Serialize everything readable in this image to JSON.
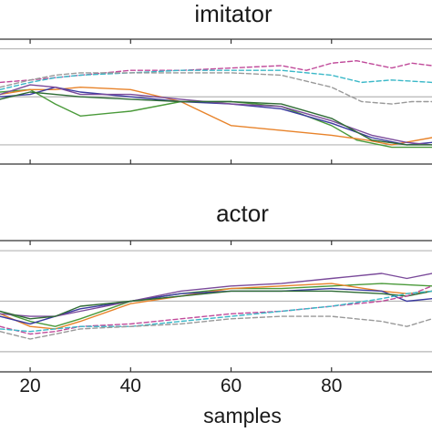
{
  "chart_data": [
    {
      "type": "line",
      "title": "imitator",
      "xlabel": "",
      "ylabel": "",
      "xlim": [
        14,
        100
      ],
      "ylim": [
        -1.4,
        1.2
      ],
      "x_ticks": [
        20,
        40,
        60,
        80
      ],
      "x_tick_labels": [],
      "y_gridlines": [
        -1,
        0,
        1
      ],
      "grid": "horizontal",
      "series": [
        {
          "style": "solid",
          "color": "#4a9a3a",
          "points": [
            [
              14,
              0.1
            ],
            [
              20,
              0.15
            ],
            [
              25,
              -0.15
            ],
            [
              30,
              -0.4
            ],
            [
              40,
              -0.3
            ],
            [
              50,
              -0.1
            ],
            [
              60,
              -0.1
            ],
            [
              70,
              -0.2
            ],
            [
              80,
              -0.6
            ],
            [
              85,
              -0.9
            ],
            [
              92,
              -1.05
            ],
            [
              100,
              -1.05
            ]
          ]
        },
        {
          "style": "solid",
          "color": "#e8832a",
          "points": [
            [
              14,
              0.05
            ],
            [
              20,
              0.15
            ],
            [
              25,
              0.15
            ],
            [
              30,
              0.2
            ],
            [
              40,
              0.15
            ],
            [
              50,
              -0.1
            ],
            [
              60,
              -0.6
            ],
            [
              70,
              -0.7
            ],
            [
              80,
              -0.8
            ],
            [
              87,
              -0.9
            ],
            [
              92,
              -1.0
            ],
            [
              100,
              -0.85
            ]
          ]
        },
        {
          "style": "solid",
          "color": "#3b3aa0",
          "points": [
            [
              14,
              0.0
            ],
            [
              20,
              0.05
            ],
            [
              25,
              0.2
            ],
            [
              30,
              0.1
            ],
            [
              40,
              0.0
            ],
            [
              50,
              -0.1
            ],
            [
              60,
              -0.15
            ],
            [
              70,
              -0.25
            ],
            [
              80,
              -0.55
            ],
            [
              88,
              -0.85
            ],
            [
              95,
              -1.0
            ],
            [
              100,
              -0.95
            ]
          ]
        },
        {
          "style": "solid",
          "color": "#7a4a9a",
          "points": [
            [
              14,
              0.05
            ],
            [
              20,
              0.25
            ],
            [
              25,
              0.2
            ],
            [
              30,
              0.05
            ],
            [
              40,
              0.05
            ],
            [
              50,
              -0.05
            ],
            [
              60,
              -0.15
            ],
            [
              70,
              -0.2
            ],
            [
              80,
              -0.5
            ],
            [
              88,
              -0.8
            ],
            [
              95,
              -0.95
            ],
            [
              100,
              -1.0
            ]
          ]
        },
        {
          "style": "solid",
          "color": "#2e6b34",
          "points": [
            [
              14,
              -0.05
            ],
            [
              20,
              0.1
            ],
            [
              25,
              0.05
            ],
            [
              30,
              0.0
            ],
            [
              40,
              -0.05
            ],
            [
              50,
              -0.1
            ],
            [
              60,
              -0.1
            ],
            [
              70,
              -0.15
            ],
            [
              80,
              -0.45
            ],
            [
              88,
              -0.9
            ],
            [
              95,
              -1.0
            ],
            [
              100,
              -1.0
            ]
          ]
        },
        {
          "style": "dashed",
          "color": "#c04a9a",
          "points": [
            [
              14,
              0.3
            ],
            [
              20,
              0.35
            ],
            [
              25,
              0.4
            ],
            [
              30,
              0.45
            ],
            [
              40,
              0.55
            ],
            [
              50,
              0.55
            ],
            [
              60,
              0.6
            ],
            [
              70,
              0.65
            ],
            [
              75,
              0.55
            ],
            [
              80,
              0.7
            ],
            [
              85,
              0.75
            ],
            [
              92,
              0.6
            ],
            [
              96,
              0.7
            ],
            [
              100,
              0.65
            ]
          ]
        },
        {
          "style": "dashed",
          "color": "#3ab8c8",
          "points": [
            [
              14,
              0.15
            ],
            [
              20,
              0.3
            ],
            [
              25,
              0.4
            ],
            [
              30,
              0.45
            ],
            [
              40,
              0.5
            ],
            [
              50,
              0.55
            ],
            [
              60,
              0.55
            ],
            [
              70,
              0.55
            ],
            [
              80,
              0.45
            ],
            [
              86,
              0.3
            ],
            [
              92,
              0.35
            ],
            [
              100,
              0.3
            ]
          ]
        },
        {
          "style": "dashed",
          "color": "#999999",
          "points": [
            [
              14,
              0.2
            ],
            [
              20,
              0.35
            ],
            [
              25,
              0.45
            ],
            [
              30,
              0.5
            ],
            [
              40,
              0.5
            ],
            [
              50,
              0.5
            ],
            [
              60,
              0.5
            ],
            [
              70,
              0.45
            ],
            [
              80,
              0.2
            ],
            [
              86,
              -0.1
            ],
            [
              92,
              -0.15
            ],
            [
              96,
              -0.1
            ],
            [
              100,
              -0.1
            ]
          ]
        }
      ]
    },
    {
      "type": "line",
      "title": "actor",
      "xlabel": "samples",
      "ylabel": "",
      "xlim": [
        14,
        100
      ],
      "ylim": [
        -1.4,
        1.2
      ],
      "x_ticks": [
        20,
        40,
        60,
        80
      ],
      "x_tick_labels": [
        "20",
        "40",
        "60",
        "80"
      ],
      "y_gridlines": [
        -1,
        0,
        1
      ],
      "grid": "horizontal",
      "series": [
        {
          "style": "solid",
          "color": "#4a9a3a",
          "points": [
            [
              14,
              -0.2
            ],
            [
              20,
              -0.4
            ],
            [
              25,
              -0.5
            ],
            [
              30,
              -0.35
            ],
            [
              40,
              0.0
            ],
            [
              50,
              0.15
            ],
            [
              60,
              0.25
            ],
            [
              70,
              0.25
            ],
            [
              80,
              0.3
            ],
            [
              90,
              0.35
            ],
            [
              100,
              0.3
            ]
          ]
        },
        {
          "style": "solid",
          "color": "#e8832a",
          "points": [
            [
              14,
              -0.25
            ],
            [
              20,
              -0.5
            ],
            [
              25,
              -0.55
            ],
            [
              30,
              -0.4
            ],
            [
              40,
              -0.05
            ],
            [
              50,
              0.1
            ],
            [
              60,
              0.25
            ],
            [
              70,
              0.3
            ],
            [
              80,
              0.35
            ],
            [
              90,
              0.2
            ],
            [
              95,
              0.15
            ],
            [
              100,
              0.2
            ]
          ]
        },
        {
          "style": "solid",
          "color": "#3b3aa0",
          "points": [
            [
              14,
              -0.3
            ],
            [
              20,
              -0.45
            ],
            [
              25,
              -0.3
            ],
            [
              30,
              -0.15
            ],
            [
              40,
              0.0
            ],
            [
              50,
              0.15
            ],
            [
              60,
              0.2
            ],
            [
              70,
              0.2
            ],
            [
              80,
              0.25
            ],
            [
              90,
              0.2
            ],
            [
              95,
              0.0
            ],
            [
              100,
              0.05
            ]
          ]
        },
        {
          "style": "solid",
          "color": "#7a4a9a",
          "points": [
            [
              14,
              -0.25
            ],
            [
              20,
              -0.3
            ],
            [
              25,
              -0.3
            ],
            [
              30,
              -0.2
            ],
            [
              40,
              0.0
            ],
            [
              50,
              0.2
            ],
            [
              60,
              0.3
            ],
            [
              70,
              0.35
            ],
            [
              80,
              0.45
            ],
            [
              90,
              0.55
            ],
            [
              95,
              0.45
            ],
            [
              100,
              0.55
            ]
          ]
        },
        {
          "style": "solid",
          "color": "#2e6b34",
          "points": [
            [
              14,
              -0.2
            ],
            [
              20,
              -0.35
            ],
            [
              25,
              -0.3
            ],
            [
              30,
              -0.1
            ],
            [
              40,
              0.0
            ],
            [
              50,
              0.1
            ],
            [
              60,
              0.2
            ],
            [
              70,
              0.2
            ],
            [
              80,
              0.2
            ],
            [
              90,
              0.15
            ],
            [
              95,
              0.1
            ],
            [
              100,
              0.2
            ]
          ]
        },
        {
          "style": "dashed",
          "color": "#c04a9a",
          "points": [
            [
              14,
              -0.5
            ],
            [
              20,
              -0.65
            ],
            [
              25,
              -0.6
            ],
            [
              30,
              -0.5
            ],
            [
              40,
              -0.45
            ],
            [
              50,
              -0.35
            ],
            [
              60,
              -0.25
            ],
            [
              70,
              -0.2
            ],
            [
              80,
              -0.1
            ],
            [
              90,
              0.0
            ],
            [
              95,
              0.1
            ],
            [
              100,
              0.3
            ]
          ]
        },
        {
          "style": "dashed",
          "color": "#3ab8c8",
          "points": [
            [
              14,
              -0.55
            ],
            [
              20,
              -0.6
            ],
            [
              25,
              -0.55
            ],
            [
              30,
              -0.5
            ],
            [
              40,
              -0.5
            ],
            [
              50,
              -0.4
            ],
            [
              60,
              -0.3
            ],
            [
              70,
              -0.2
            ],
            [
              80,
              -0.1
            ],
            [
              90,
              0.05
            ],
            [
              95,
              0.15
            ],
            [
              100,
              0.2
            ]
          ]
        },
        {
          "style": "dashed",
          "color": "#999999",
          "points": [
            [
              14,
              -0.6
            ],
            [
              20,
              -0.75
            ],
            [
              25,
              -0.65
            ],
            [
              30,
              -0.55
            ],
            [
              40,
              -0.5
            ],
            [
              50,
              -0.45
            ],
            [
              60,
              -0.35
            ],
            [
              70,
              -0.3
            ],
            [
              80,
              -0.3
            ],
            [
              90,
              -0.4
            ],
            [
              95,
              -0.5
            ],
            [
              100,
              -0.35
            ]
          ]
        }
      ]
    }
  ]
}
